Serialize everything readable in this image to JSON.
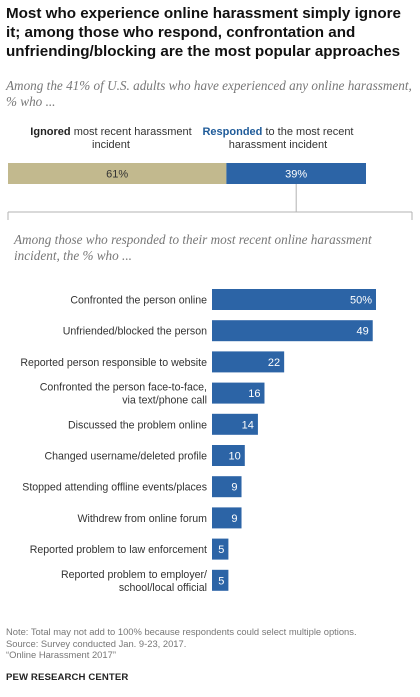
{
  "title": "Most who experience online harassment simply ignore it; among those who respond, confrontation and unfriending/blocking  are the most popular approaches",
  "subtitle": "Among the 41% of U.S. adults who have experienced any online harassment, % who ...",
  "split": {
    "ignored_bold": "Ignored",
    "ignored_rest": " most recent harassment incident",
    "responded_bold": "Responded",
    "responded_rest": " to the most recent harassment incident"
  },
  "subtitle2": "Among those who responded to their most recent online harassment incident, the % who ...",
  "colors": {
    "ignored": "#c2b98e",
    "responded": "#2c64a6",
    "bracket": "#b3b3b3"
  },
  "chart_data": [
    {
      "type": "bar",
      "orientation": "horizontal-stacked",
      "categories": [
        "Ignored",
        "Responded"
      ],
      "values": [
        61,
        39
      ],
      "labels": [
        "61%",
        "39%"
      ],
      "xlim": [
        0,
        100
      ]
    },
    {
      "type": "bar",
      "orientation": "horizontal",
      "categories": [
        "Confronted the person online",
        "Unfriended/blocked the person",
        "Reported person responsible to website",
        "Confronted the person face-to-face,|via text/phone call",
        "Discussed the problem online",
        "Changed username/deleted profile",
        "Stopped attending offline events/places",
        "Withdrew from online forum",
        "Reported problem to law enforcement",
        "Reported problem to employer/|school/local official"
      ],
      "values": [
        50,
        49,
        22,
        16,
        14,
        10,
        9,
        9,
        5,
        5
      ],
      "labels": [
        "50%",
        "49",
        "22",
        "16",
        "14",
        "10",
        "9",
        "9",
        "5",
        "5"
      ],
      "xlim": [
        0,
        50
      ]
    }
  ],
  "footer": {
    "note": "Note: Total may not add to 100% because respondents could select multiple options.",
    "source": "Source: Survey conducted Jan. 9-23, 2017.",
    "report": "“Online Harassment 2017”",
    "brand": "PEW RESEARCH CENTER"
  }
}
